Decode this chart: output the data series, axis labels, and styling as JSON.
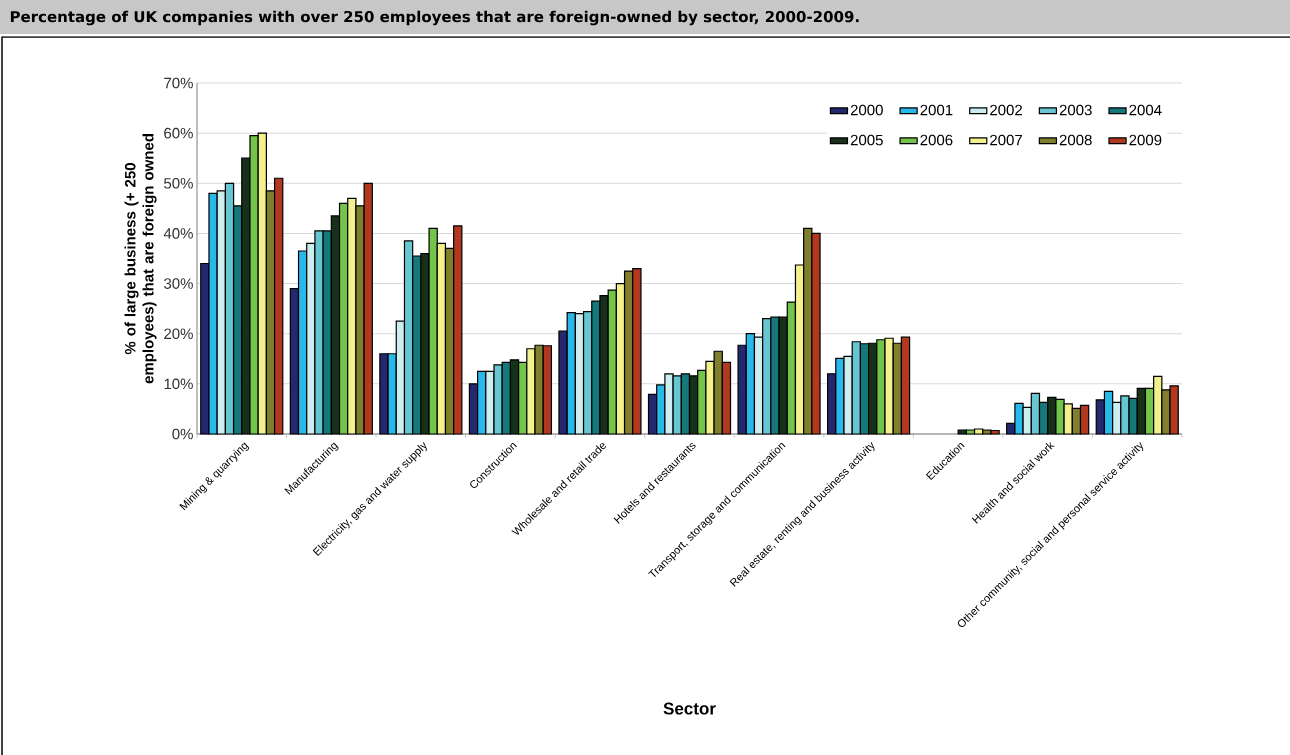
{
  "chart_data": {
    "type": "bar",
    "title": "Percentage of UK companies with over 250 employees that are foreign-owned by sector, 2000-2009.",
    "xlabel": "Sector",
    "ylabel": "% of large business (+ 250 employees) that are foreign owned",
    "categories": [
      "Mining & quarrying",
      "Manufacturing",
      "Electricity, gas and water supply",
      "Construction",
      "Wholesale and retail trade",
      "Hotels and restaurants",
      "Transport, storage and communication",
      "Real estate, renting and business activity",
      "Education",
      "Health and social work",
      "Other community, social and personal service activity"
    ],
    "series": [
      {
        "name": "2000",
        "color": "#25286e",
        "values": [
          34,
          29,
          16,
          10,
          20.5,
          7.9,
          17.7,
          12,
          null,
          2.1,
          6.8
        ]
      },
      {
        "name": "2001",
        "color": "#29b8ea",
        "values": [
          48,
          36.5,
          16,
          12.5,
          24.2,
          9.8,
          20,
          15.1,
          null,
          6.1,
          8.5
        ]
      },
      {
        "name": "2002",
        "color": "#cdeef0",
        "values": [
          48.5,
          38,
          22.5,
          12.5,
          24,
          12,
          19.3,
          15.5,
          null,
          5.3,
          6.3
        ]
      },
      {
        "name": "2003",
        "color": "#66c7d3",
        "values": [
          50,
          40.5,
          38.5,
          13.8,
          24.4,
          11.6,
          23,
          18.4,
          null,
          8.1,
          7.6
        ]
      },
      {
        "name": "2004",
        "color": "#15787a",
        "values": [
          45.5,
          40.5,
          35.5,
          14.3,
          26.5,
          12,
          23.3,
          18,
          null,
          6.3,
          7.1
        ]
      },
      {
        "name": "2005",
        "color": "#17301a",
        "values": [
          55,
          43.5,
          36,
          14.8,
          27.6,
          11.6,
          23.3,
          18.1,
          0.8,
          7.3,
          9.1
        ]
      },
      {
        "name": "2006",
        "color": "#72c44a",
        "values": [
          59.5,
          46,
          41,
          14.3,
          28.7,
          12.7,
          26.3,
          18.8,
          0.8,
          6.9,
          9.1
        ]
      },
      {
        "name": "2007",
        "color": "#f3f08e",
        "values": [
          60,
          47,
          38,
          17,
          30,
          14.5,
          33.7,
          19.1,
          1,
          6,
          11.5
        ]
      },
      {
        "name": "2008",
        "color": "#7f7f2e",
        "values": [
          48.5,
          45.5,
          37,
          17.7,
          32.5,
          16.5,
          41,
          18.1,
          0.8,
          5.1,
          8.8
        ]
      },
      {
        "name": "2009",
        "color": "#b2391f",
        "values": [
          51,
          50,
          41.5,
          17.6,
          33,
          14.3,
          40,
          19.3,
          0.7,
          5.7,
          9.6
        ]
      }
    ],
    "ylim": [
      0,
      70
    ],
    "yticks": [
      {
        "value": 0,
        "label": "0%"
      },
      {
        "value": 10,
        "label": "10%"
      },
      {
        "value": 20,
        "label": "20%"
      },
      {
        "value": 30,
        "label": "30%"
      },
      {
        "value": 40,
        "label": "40%"
      },
      {
        "value": 50,
        "label": "50%"
      },
      {
        "value": 60,
        "label": "60%"
      },
      {
        "value": 70,
        "label": "70%"
      }
    ],
    "grid": "y",
    "legend": "top right"
  }
}
